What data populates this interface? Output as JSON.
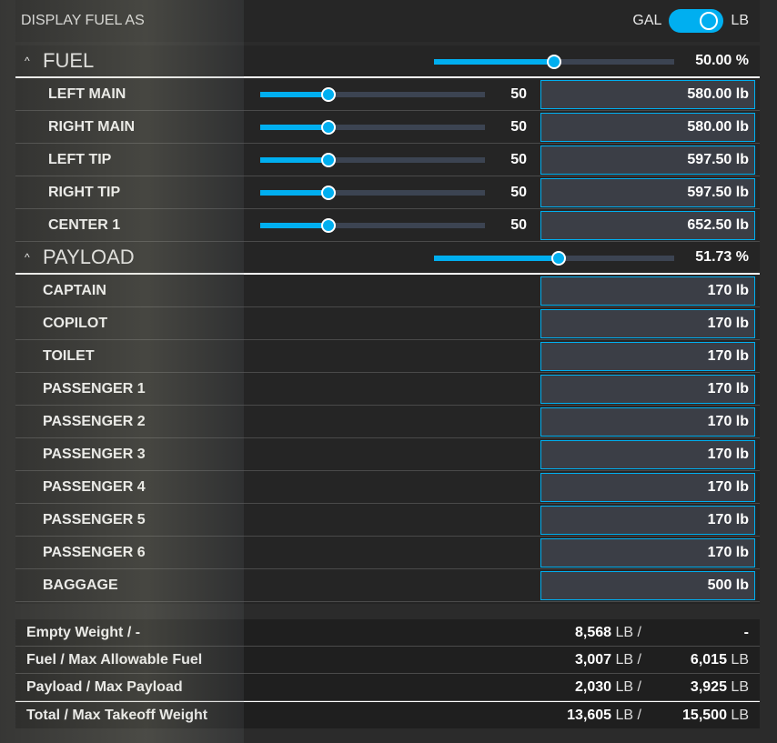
{
  "header": {
    "label": "DISPLAY FUEL AS",
    "left_unit": "GAL",
    "right_unit": "LB",
    "toggle_on": true
  },
  "fuel": {
    "title": "FUEL",
    "percent_text": "50.00 %",
    "percent": 50,
    "tanks": [
      {
        "name": "LEFT MAIN",
        "slider": 50,
        "value": "50",
        "amount": "580.00 lb"
      },
      {
        "name": "RIGHT MAIN",
        "slider": 50,
        "value": "50",
        "amount": "580.00 lb"
      },
      {
        "name": "LEFT TIP",
        "slider": 50,
        "value": "50",
        "amount": "597.50 lb"
      },
      {
        "name": "RIGHT TIP",
        "slider": 50,
        "value": "50",
        "amount": "597.50 lb"
      },
      {
        "name": "CENTER 1",
        "slider": 50,
        "value": "50",
        "amount": "652.50 lb"
      }
    ]
  },
  "payload": {
    "title": "PAYLOAD",
    "percent_text": "51.73 %",
    "percent": 51.73,
    "stations": [
      {
        "name": "CAPTAIN",
        "amount": "170 lb"
      },
      {
        "name": "COPILOT",
        "amount": "170 lb"
      },
      {
        "name": "TOILET",
        "amount": "170 lb"
      },
      {
        "name": "PASSENGER 1",
        "amount": "170 lb"
      },
      {
        "name": "PASSENGER 2",
        "amount": "170 lb"
      },
      {
        "name": "PASSENGER 3",
        "amount": "170 lb"
      },
      {
        "name": "PASSENGER 4",
        "amount": "170 lb"
      },
      {
        "name": "PASSENGER 5",
        "amount": "170 lb"
      },
      {
        "name": "PASSENGER 6",
        "amount": "170 lb"
      },
      {
        "name": "BAGGAGE",
        "amount": "500 lb"
      }
    ]
  },
  "summary": [
    {
      "label": "Empty Weight / -",
      "value": "8,568",
      "unit": "LB /",
      "max": "-",
      "max_unit": ""
    },
    {
      "label": "Fuel / Max Allowable Fuel",
      "value": "3,007",
      "unit": "LB /",
      "max": "6,015",
      "max_unit": "LB"
    },
    {
      "label": "Payload / Max Payload",
      "value": "2,030",
      "unit": "LB /",
      "max": "3,925",
      "max_unit": "LB"
    },
    {
      "label": "Total / Max Takeoff Weight",
      "value": "13,605",
      "unit": "LB /",
      "max": "15,500",
      "max_unit": "LB"
    }
  ],
  "colors": {
    "accent": "#00aff0"
  }
}
